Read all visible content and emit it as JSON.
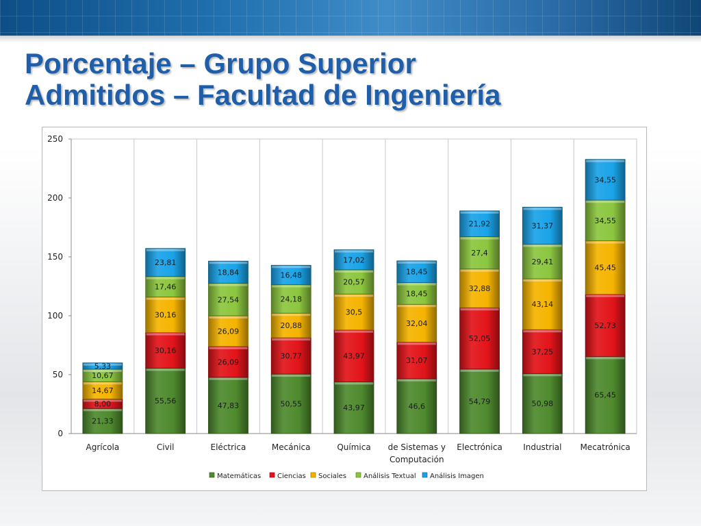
{
  "slide": {
    "title_line1": "Porcentaje – Grupo Superior",
    "title_line2": "Admitidos – Facultad de Ingeniería"
  },
  "colors": {
    "Matemáticas": "#4f8a2e",
    "Ciencias": "#e2141a",
    "Sociales": "#f5b400",
    "Análisis Textual": "#8cc63f",
    "Análisis Imagen": "#1aa3e8",
    "title": "#1f5ea8"
  },
  "chart_data": {
    "type": "bar",
    "stacked": true,
    "title": "",
    "xlabel": "",
    "ylabel": "",
    "ylim": [
      0,
      250
    ],
    "yticks": [
      0,
      50,
      100,
      150,
      200,
      250
    ],
    "grid": "vertical category separators",
    "legend_position": "bottom",
    "categories": [
      "Agrícola",
      "Civil",
      "Eléctrica",
      "Mecánica",
      "Química",
      "de Sistemas y Computación",
      "Electrónica",
      "Industrial",
      "Mecatrónica"
    ],
    "category_label_lines": [
      [
        "Agrícola"
      ],
      [
        "Civil"
      ],
      [
        "Eléctrica"
      ],
      [
        "Mecánica"
      ],
      [
        "Química"
      ],
      [
        "de Sistemas y",
        "Computación"
      ],
      [
        "Electrónica"
      ],
      [
        "Industrial"
      ],
      [
        "Mecatrónica"
      ]
    ],
    "series": [
      {
        "name": "Matemáticas",
        "values": [
          21.33,
          55.56,
          47.83,
          50.55,
          43.97,
          46.6,
          54.79,
          50.98,
          65.45
        ],
        "labels": [
          "21,33",
          "55,56",
          "47,83",
          "50,55",
          "43,97",
          "46,6",
          "54,79",
          "50,98",
          "65,45"
        ]
      },
      {
        "name": "Ciencias",
        "values": [
          8.0,
          30.16,
          26.09,
          30.77,
          43.97,
          31.07,
          52.05,
          37.25,
          52.73
        ],
        "labels": [
          "8,00",
          "30,16",
          "26,09",
          "30,77",
          "43,97",
          "31,07",
          "52,05",
          "37,25",
          "52,73"
        ]
      },
      {
        "name": "Sociales",
        "values": [
          14.67,
          30.16,
          26.09,
          20.88,
          30.5,
          32.04,
          32.88,
          43.14,
          45.45
        ],
        "labels": [
          "14,67",
          "30,16",
          "26,09",
          "20,88",
          "30,5",
          "32,04",
          "32,88",
          "43,14",
          "45,45"
        ]
      },
      {
        "name": "Análisis Textual",
        "values": [
          10.67,
          17.46,
          27.54,
          24.18,
          20.57,
          18.45,
          27.4,
          29.41,
          34.55
        ],
        "labels": [
          "10,67",
          "17,46",
          "27,54",
          "24,18",
          "20,57",
          "18,45",
          "27,4",
          "29,41",
          "34,55"
        ]
      },
      {
        "name": "Análisis Imagen",
        "values": [
          5.33,
          23.81,
          18.84,
          16.48,
          17.02,
          18.45,
          21.92,
          31.37,
          34.55
        ],
        "labels": [
          "5,33",
          "23,81",
          "18,84",
          "16,48",
          "17,02",
          "18,45",
          "21,92",
          "31,37",
          "34,55"
        ]
      }
    ]
  }
}
